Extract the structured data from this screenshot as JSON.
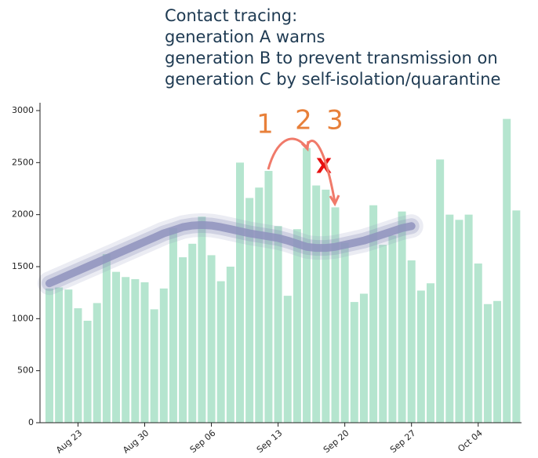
{
  "chart_data": {
    "type": "bar",
    "title_lines": [
      "Contact tracing:",
      "generation A warns",
      "generation B to prevent transmission on",
      "generation C by self-isolation/quarantine"
    ],
    "annotations": [
      "1",
      "2",
      "3",
      "X"
    ],
    "categories": [
      null,
      null,
      null,
      "Aug 23",
      null,
      null,
      null,
      null,
      null,
      null,
      "Aug 30",
      null,
      null,
      null,
      null,
      null,
      null,
      "Sep 06",
      null,
      null,
      null,
      null,
      null,
      null,
      "Sep 13",
      null,
      null,
      null,
      null,
      null,
      null,
      "Sep 20",
      null,
      null,
      null,
      null,
      null,
      null,
      "Sep 27",
      null,
      null,
      null,
      null,
      null,
      null,
      "Oct 04",
      null,
      null,
      null,
      null
    ],
    "values": [
      1290,
      1300,
      1280,
      1100,
      980,
      1150,
      1620,
      1450,
      1400,
      1380,
      1350,
      1090,
      1290,
      1870,
      1590,
      1720,
      1980,
      1610,
      1360,
      1500,
      2500,
      2160,
      2260,
      2420,
      1890,
      1220,
      1860,
      2640,
      2280,
      2240,
      2070,
      1730,
      1160,
      1240,
      2090,
      1710,
      1800,
      2030,
      1560,
      1270,
      1340,
      2530,
      2000,
      1950,
      2000,
      1530,
      1140,
      1170,
      2920,
      2040
    ],
    "color": "#b5e5cf",
    "trend": {
      "color": "#8f93bd",
      "values": [
        1340,
        1380,
        1420,
        1460,
        1500,
        1540,
        1580,
        1620,
        1660,
        1700,
        1740,
        1780,
        1820,
        1850,
        1880,
        1895,
        1900,
        1895,
        1880,
        1860,
        1840,
        1820,
        1805,
        1790,
        1775,
        1750,
        1720,
        1690,
        1680,
        1680,
        1690,
        1710,
        1730,
        1750,
        1780,
        1810,
        1840,
        1870,
        1890,
        null,
        null,
        null,
        null,
        null,
        null,
        null,
        null,
        null,
        null,
        null
      ]
    },
    "ylim": [
      0,
      3000
    ],
    "yticks": [
      0,
      500,
      1000,
      1500,
      2000,
      2500,
      3000
    ],
    "grid": false
  }
}
